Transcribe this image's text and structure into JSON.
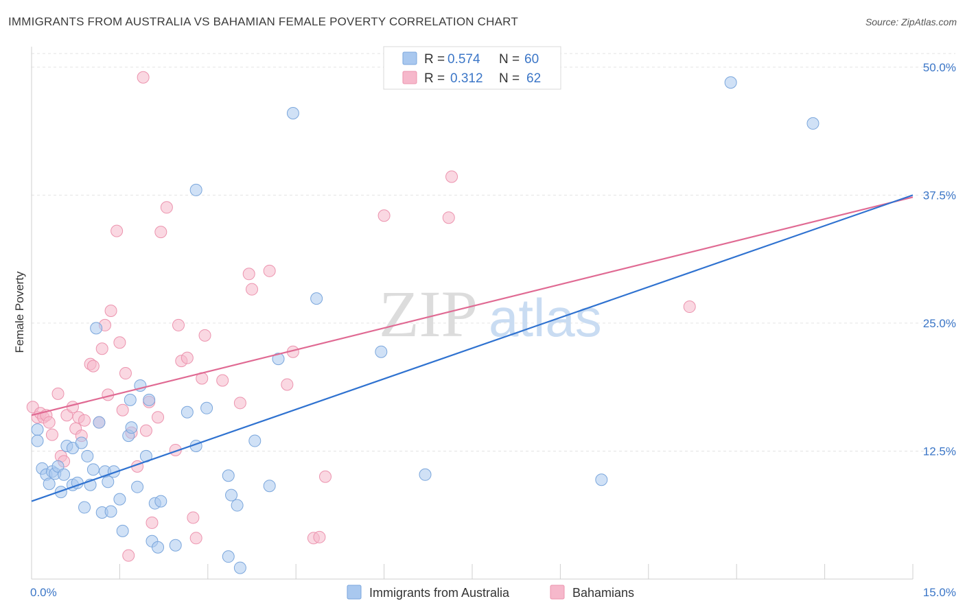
{
  "header": {
    "title": "IMMIGRANTS FROM AUSTRALIA VS BAHAMIAN FEMALE POVERTY CORRELATION CHART",
    "source": "Source: ZipAtlas.com"
  },
  "watermark": {
    "zip": "ZIP",
    "atlas": "atlas"
  },
  "colors": {
    "blue_fill": "#a9c8ef",
    "blue_stroke": "#7aa6dc",
    "blue_line": "#2f72d0",
    "pink_fill": "#f6b8cb",
    "pink_stroke": "#ec93ae",
    "pink_line": "#e06a93",
    "grid": "#e3e3e3",
    "axis_text": "#3b76c7"
  },
  "legend": {
    "rows": [
      {
        "r_label": "R =",
        "r_value": "0.574",
        "n_label": "N =",
        "n_value": "60"
      },
      {
        "r_label": "R =",
        "r_value": "0.312",
        "n_label": "N =",
        "n_value": "62"
      }
    ]
  },
  "bottom_legend": {
    "series1": "Immigrants from Australia",
    "series2": "Bahamians"
  },
  "chart_data": {
    "type": "scatter",
    "title": "IMMIGRANTS FROM AUSTRALIA VS BAHAMIAN FEMALE POVERTY CORRELATION CHART",
    "xlabel": "",
    "ylabel": "Female Poverty",
    "xlim": [
      0,
      15
    ],
    "ylim": [
      0,
      52
    ],
    "x_tick_labels": [
      "0.0%",
      "15.0%"
    ],
    "y_ticks": [
      12.5,
      25.0,
      37.5,
      50.0
    ],
    "y_tick_labels": [
      "12.5%",
      "25.0%",
      "37.5%",
      "50.0%"
    ],
    "series": [
      {
        "name": "Immigrants from Australia",
        "r": 0.574,
        "n": 60,
        "trend": {
          "x": [
            0,
            15
          ],
          "y": [
            7.6,
            37.5
          ]
        },
        "points": [
          [
            0.1,
            14.6
          ],
          [
            0.1,
            13.5
          ],
          [
            0.18,
            10.8
          ],
          [
            0.25,
            10.2
          ],
          [
            0.3,
            9.3
          ],
          [
            0.35,
            10.5
          ],
          [
            0.4,
            10.3
          ],
          [
            0.45,
            11.0
          ],
          [
            0.5,
            8.5
          ],
          [
            0.55,
            10.2
          ],
          [
            0.6,
            13.0
          ],
          [
            0.7,
            12.8
          ],
          [
            0.7,
            9.2
          ],
          [
            0.78,
            9.4
          ],
          [
            0.85,
            13.3
          ],
          [
            0.9,
            7.0
          ],
          [
            0.95,
            12.0
          ],
          [
            1.0,
            9.2
          ],
          [
            1.05,
            10.7
          ],
          [
            1.1,
            24.5
          ],
          [
            1.15,
            15.3
          ],
          [
            1.2,
            6.5
          ],
          [
            1.25,
            10.5
          ],
          [
            1.3,
            9.5
          ],
          [
            1.35,
            6.6
          ],
          [
            1.4,
            10.5
          ],
          [
            1.5,
            7.8
          ],
          [
            1.55,
            4.7
          ],
          [
            1.65,
            14.0
          ],
          [
            1.68,
            17.5
          ],
          [
            1.7,
            14.8
          ],
          [
            1.8,
            9.0
          ],
          [
            1.85,
            18.9
          ],
          [
            1.95,
            12.0
          ],
          [
            2.0,
            17.5
          ],
          [
            2.05,
            3.7
          ],
          [
            2.1,
            7.4
          ],
          [
            2.15,
            3.1
          ],
          [
            2.2,
            7.6
          ],
          [
            2.45,
            3.3
          ],
          [
            2.65,
            16.3
          ],
          [
            2.8,
            38.0
          ],
          [
            2.8,
            13.0
          ],
          [
            2.98,
            16.7
          ],
          [
            3.35,
            2.2
          ],
          [
            3.35,
            10.1
          ],
          [
            3.4,
            8.2
          ],
          [
            3.5,
            7.2
          ],
          [
            3.55,
            1.1
          ],
          [
            3.8,
            13.5
          ],
          [
            4.05,
            9.1
          ],
          [
            4.2,
            21.5
          ],
          [
            4.45,
            45.5
          ],
          [
            4.85,
            27.4
          ],
          [
            5.95,
            22.2
          ],
          [
            6.7,
            10.2
          ],
          [
            9.7,
            9.7
          ],
          [
            11.9,
            48.5
          ],
          [
            13.3,
            44.5
          ]
        ]
      },
      {
        "name": "Bahamians",
        "r": 0.312,
        "n": 62,
        "trend": {
          "x": [
            0,
            15
          ],
          "y": [
            16.0,
            37.3
          ]
        },
        "points": [
          [
            0.02,
            16.8
          ],
          [
            0.1,
            15.8
          ],
          [
            0.15,
            16.2
          ],
          [
            0.2,
            15.8
          ],
          [
            0.25,
            16.0
          ],
          [
            0.3,
            15.3
          ],
          [
            0.35,
            14.1
          ],
          [
            0.45,
            18.1
          ],
          [
            0.5,
            12.0
          ],
          [
            0.55,
            11.5
          ],
          [
            0.6,
            16.0
          ],
          [
            0.7,
            16.8
          ],
          [
            0.75,
            14.7
          ],
          [
            0.8,
            15.8
          ],
          [
            0.85,
            14.0
          ],
          [
            0.9,
            15.5
          ],
          [
            1.0,
            21.0
          ],
          [
            1.05,
            20.8
          ],
          [
            1.15,
            15.3
          ],
          [
            1.2,
            22.5
          ],
          [
            1.25,
            24.8
          ],
          [
            1.3,
            18.0
          ],
          [
            1.35,
            26.2
          ],
          [
            1.45,
            34.0
          ],
          [
            1.5,
            23.1
          ],
          [
            1.55,
            16.5
          ],
          [
            1.6,
            20.1
          ],
          [
            1.65,
            2.3
          ],
          [
            1.7,
            14.3
          ],
          [
            1.8,
            11.0
          ],
          [
            1.9,
            49.0
          ],
          [
            1.95,
            14.5
          ],
          [
            2.0,
            17.3
          ],
          [
            2.05,
            5.5
          ],
          [
            2.15,
            15.8
          ],
          [
            2.2,
            33.9
          ],
          [
            2.3,
            36.3
          ],
          [
            2.45,
            12.6
          ],
          [
            2.5,
            24.8
          ],
          [
            2.55,
            21.3
          ],
          [
            2.65,
            21.6
          ],
          [
            2.75,
            6.0
          ],
          [
            2.8,
            4.0
          ],
          [
            2.9,
            19.6
          ],
          [
            2.95,
            23.8
          ],
          [
            3.25,
            19.4
          ],
          [
            3.55,
            17.2
          ],
          [
            3.7,
            29.8
          ],
          [
            3.75,
            28.3
          ],
          [
            4.05,
            30.1
          ],
          [
            4.35,
            19.0
          ],
          [
            4.45,
            22.2
          ],
          [
            4.8,
            4.0
          ],
          [
            4.9,
            4.1
          ],
          [
            5.0,
            10.0
          ],
          [
            6.0,
            35.5
          ],
          [
            7.1,
            35.3
          ],
          [
            7.15,
            39.3
          ],
          [
            11.2,
            26.6
          ]
        ]
      }
    ]
  }
}
